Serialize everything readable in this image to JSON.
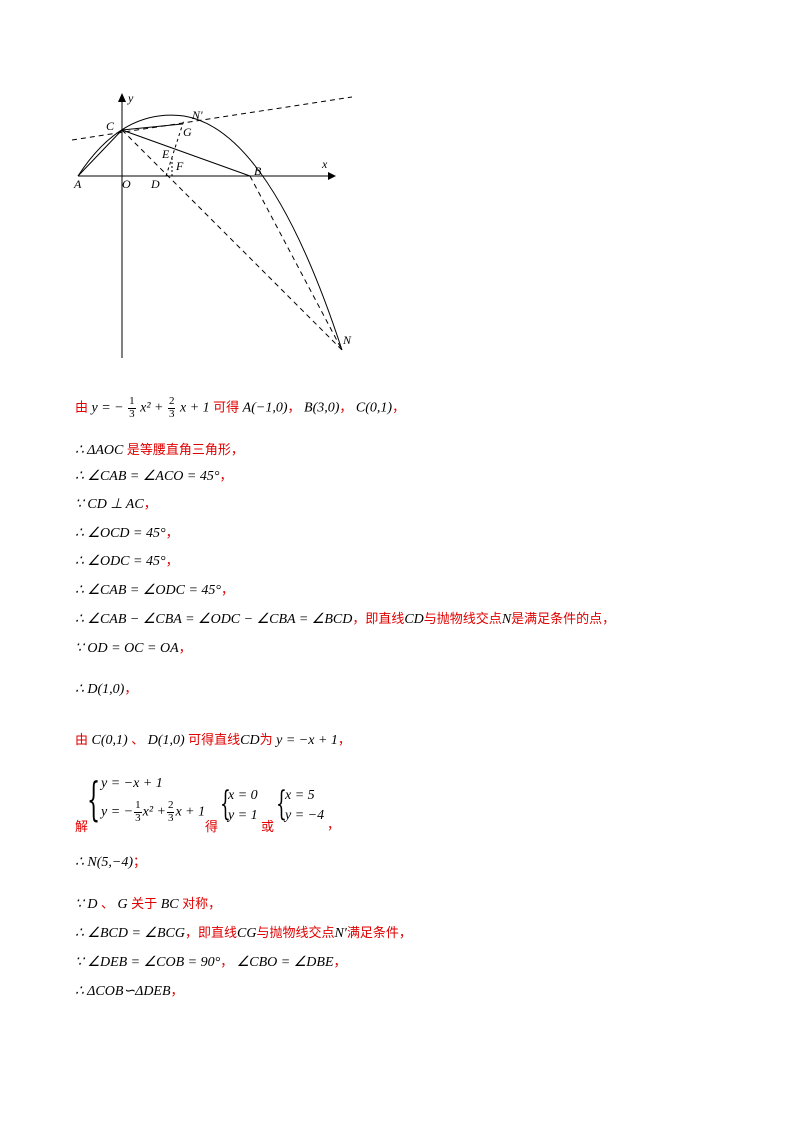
{
  "figure": {
    "labels": {
      "y": "y",
      "x": "x",
      "C": "C",
      "N_prime": "N'",
      "G": "G",
      "E": "E",
      "F": "F",
      "A": "A",
      "O": "O",
      "D": "D",
      "B": "B",
      "N": "N"
    }
  },
  "lines": {
    "l1": {
      "you": "由",
      "eq": "y = −",
      "frac1_num": "1",
      "frac1_den": "3",
      "mid": "x² +",
      "frac2_num": "2",
      "frac2_den": "3",
      "tail": "x + 1",
      "keyi": "可得",
      "A": "A(−1,0)",
      "sep1": "，",
      "B": "B(3,0)",
      "sep2": "，",
      "C": "C(0,1)",
      "end": "，"
    },
    "l2": {
      "math": "∴ ΔAOC",
      "cn": "是等腰直角三角形，"
    },
    "l3": {
      "math": "∴ ∠CAB = ∠ACO = 45°",
      "cn": "，"
    },
    "l4": {
      "math": "∵ CD ⊥ AC",
      "cn": "，"
    },
    "l5": {
      "math": "∴ ∠OCD = 45°",
      "cn": "，"
    },
    "l6": {
      "math": "∴ ∠ODC = 45°",
      "cn": "，"
    },
    "l7": {
      "math": "∴ ∠CAB = ∠ODC = 45°",
      "cn": "，"
    },
    "l8": {
      "math": "∴ ∠CAB − ∠CBA = ∠ODC − ∠CBA = ∠BCD",
      "cn1": "，即直线",
      "m2": "CD",
      "cn2": "与抛物线交点",
      "m3": "N",
      "cn3": "是满足条件的点，"
    },
    "l9": {
      "math": "∵ OD = OC = OA",
      "cn": "，"
    },
    "l10": {
      "math": "∴ D(1,0)",
      "cn": "，"
    },
    "l11": {
      "you": "由",
      "m1": "C(0,1)",
      "cn1": "、",
      "m2": "D(1,0)",
      "cn2": "可得直线",
      "m3": "CD",
      "cn3": "为",
      "m4": "y = −x + 1",
      "cn4": "，"
    },
    "l12": {
      "jie": "解",
      "sys1_r1": "y = −x + 1",
      "sys1_r2_a": "y = −",
      "sys1_r2_mid": "x² +",
      "sys1_r2_tail": "x + 1",
      "f1_num": "1",
      "f1_den": "3",
      "f2_num": "2",
      "f2_den": "3",
      "de": "得",
      "sys2_r1": "x = 0",
      "sys2_r2": "y = 1",
      "huo": "或",
      "sys3_r1": "x = 5",
      "sys3_r2": "y = −4",
      "end": "，"
    },
    "l13": {
      "math": "∴ N(5,−4)",
      "cn": "；"
    },
    "l14": {
      "m1": "∵ D",
      "cn1": "、",
      "m2": "G",
      "cn2": "关于",
      "m3": "BC",
      "cn3": "对称，"
    },
    "l15": {
      "math": "∴ ∠BCD = ∠BCG",
      "cn1": "，即直线",
      "m2": "CG",
      "cn2": "与抛物线交点",
      "m3": "N′",
      "cn3": "满足条件，"
    },
    "l16": {
      "math1": "∵ ∠DEB = ∠COB = 90°",
      "cn1": "，",
      "math2": "∠CBO = ∠DBE",
      "cn2": "，"
    },
    "l17": {
      "math": "∴ ΔCOB∽ΔDEB",
      "cn": "，"
    }
  }
}
